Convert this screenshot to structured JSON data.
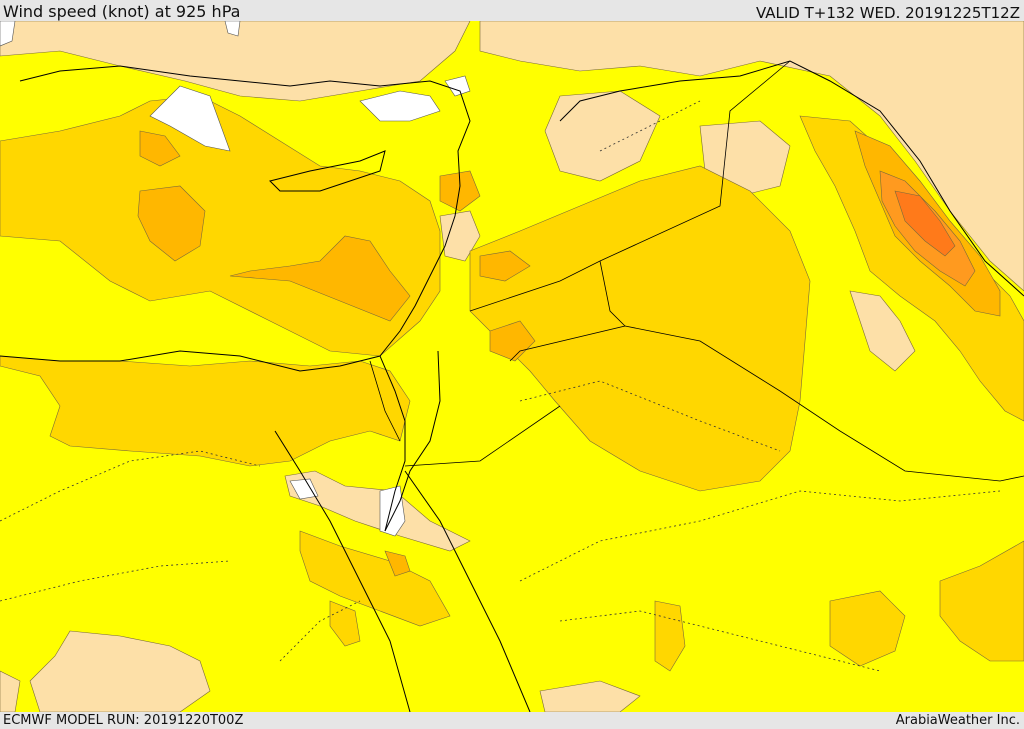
{
  "header": {
    "title": "Wind speed (knot) at 925 hPa",
    "valid": "VALID T+132 WED. 20191225T12Z"
  },
  "footer": {
    "run": "ECMWF MODEL RUN: 20191220T00Z",
    "credit": "ArabiaWeather Inc."
  },
  "colors": {
    "no_data": "#ffffff",
    "band_low": "#fde0a8",
    "band_1": "#ffff00",
    "band_2": "#ffd700",
    "band_3": "#ffb700",
    "band_4": "#ff9a1f",
    "band_5": "#ff7a1a",
    "border": "#000000"
  }
}
